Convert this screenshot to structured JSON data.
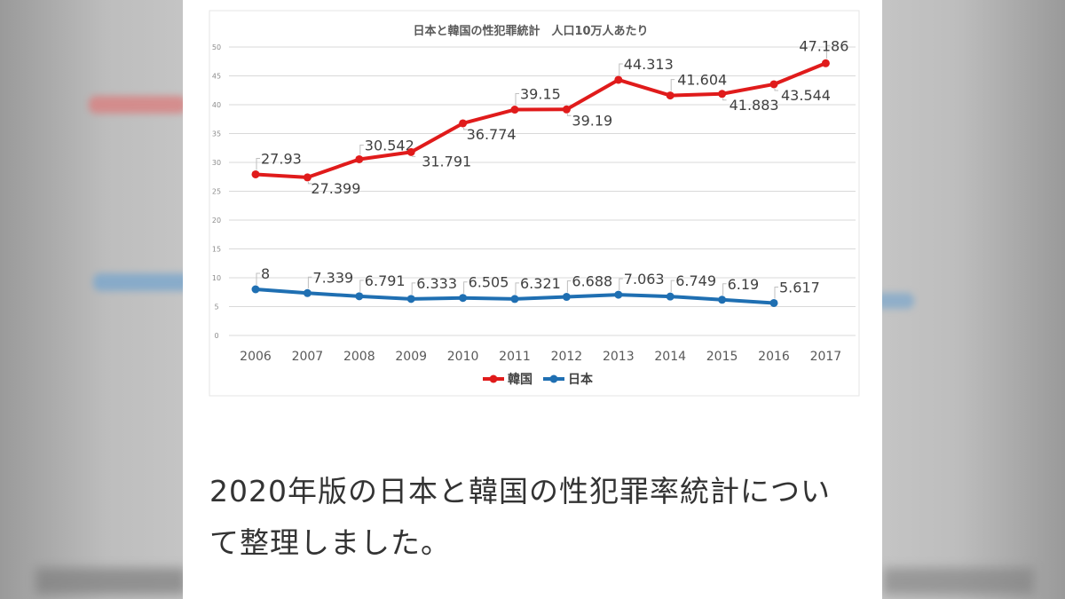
{
  "caption": "2020年版の日本と韓国の性犯罪率統計について整理しました。",
  "chart_data": {
    "type": "line",
    "title": "日本と韓国の性犯罪統計　人口10万人あたり",
    "xlabel": "",
    "ylabel": "",
    "ylim": [
      0,
      50
    ],
    "yticks": [
      0,
      5,
      10,
      15,
      20,
      25,
      30,
      35,
      40,
      45,
      50
    ],
    "categories": [
      "2006",
      "2007",
      "2008",
      "2009",
      "2010",
      "2011",
      "2012",
      "2013",
      "2014",
      "2015",
      "2016",
      "2017"
    ],
    "grid": true,
    "legend": "bottom",
    "series": [
      {
        "name": "韓国",
        "color": "#e01b1b",
        "values": [
          27.93,
          27.399,
          30.542,
          31.791,
          36.774,
          39.15,
          39.19,
          44.313,
          41.604,
          41.883,
          43.544,
          47.186
        ],
        "labels": [
          "27.93",
          "27.399",
          "30.542",
          "31.791",
          "36.774",
          "39.15",
          "39.19",
          "44.313",
          "41.604",
          "41.883",
          "43.544",
          "47.186"
        ]
      },
      {
        "name": "日本",
        "color": "#1f6fb2",
        "values": [
          8,
          7.339,
          6.791,
          6.333,
          6.505,
          6.321,
          6.688,
          7.063,
          6.749,
          6.19,
          5.617,
          null
        ],
        "labels": [
          "8",
          "7.339",
          "6.791",
          "6.333",
          "6.505",
          "6.321",
          "6.688",
          "7.063",
          "6.749",
          "6.19",
          "5.617",
          null
        ]
      }
    ]
  }
}
